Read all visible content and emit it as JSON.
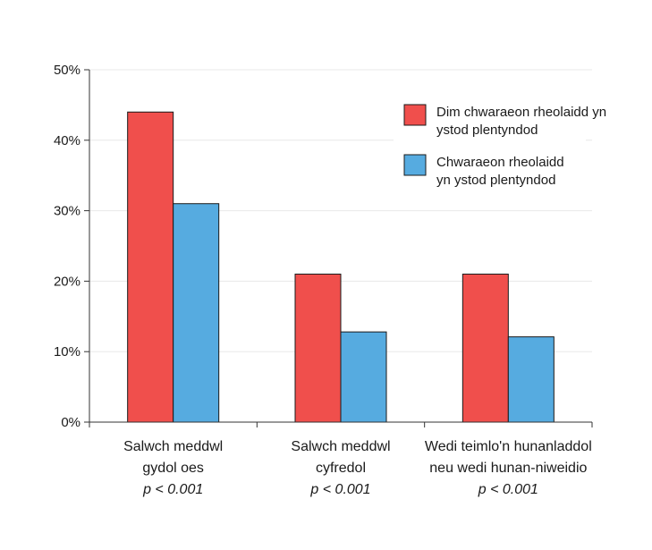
{
  "chart_data": {
    "type": "bar",
    "title": "",
    "xlabel": "",
    "ylabel": "",
    "ylim": [
      0,
      50
    ],
    "yticks": [
      "0%",
      "10%",
      "20%",
      "30%",
      "40%",
      "50%"
    ],
    "ytick_values": [
      0,
      10,
      20,
      30,
      40,
      50
    ],
    "grid": true,
    "legend_position": "top-right",
    "categories": [
      {
        "lines": [
          "Salwch meddwl",
          "gydol oes"
        ],
        "pvalue": "p < 0.001"
      },
      {
        "lines": [
          "Salwch meddwl",
          "cyfredol"
        ],
        "pvalue": "p < 0.001"
      },
      {
        "lines": [
          "Wedi teimlo'n hunanladdol",
          "neu wedi hunan-niweidio"
        ],
        "pvalue": "p < 0.001"
      }
    ],
    "series": [
      {
        "name": "Dim chwaraeon rheolaidd yn ystod plentyndod",
        "legend_lines": [
          "Dim chwaraeon rheolaidd yn",
          "ystod plentyndod"
        ],
        "color": "#f04f4c",
        "values": [
          44,
          21,
          21
        ]
      },
      {
        "name": "Chwaraeon rheolaidd yn ystod plentyndod",
        "legend_lines": [
          "Chwaraeon rheolaidd",
          "yn ystod plentyndod"
        ],
        "color": "#56abe0",
        "values": [
          31,
          12.8,
          12.1
        ]
      }
    ]
  }
}
